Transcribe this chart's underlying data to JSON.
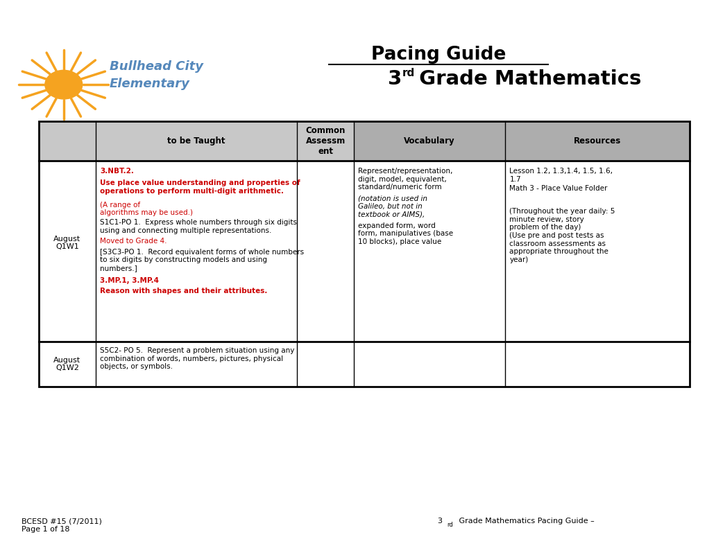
{
  "title_line1": "Pacing Guide",
  "bg_color": "#ffffff",
  "red_color": "#cc0000",
  "black_color": "#000000",
  "logo_sun_color": "#f5a320",
  "logo_text_blue": "#5588bb",
  "footer_left": "BCESD #15 (7/2011)\nPage 1 of 18",
  "footer_right": " Grade Mathematics Pacing Guide –",
  "col_headers": [
    "",
    "to be Taught",
    "Common\nAssessm\nent",
    "Vocabulary",
    "Resources"
  ],
  "row1_week": "August\nQ1W1",
  "row2_week": "August\nQ1W2",
  "row1_vocab": "Represent/representation,\ndigit, model, equivalent,\nstandard/numeric form",
  "row1_vocab_italic": "(notation is used in\nGalileo, but not in\ntextbook or AIMS),",
  "row1_vocab_rest": "expanded form, word\nform, manipulatives (base\n10 blocks), place value",
  "row1_res1": "Lesson 1.2, 1.3,1.4, 1.5, 1.6,\n1.7",
  "row1_res2": "Math 3 - Place Value Folder",
  "row1_res3": "(Throughout the year daily: 5\nminute review, story\nproblem of the day)\n(Use pre and post tests as\nclassroom assessments as\nappropriate throughout the\nyear)",
  "row2_content": "S5C2- PO 5.  Represent a problem situation using any\ncombination of words, numbers, pictures, physical\nobjects, or symbols."
}
